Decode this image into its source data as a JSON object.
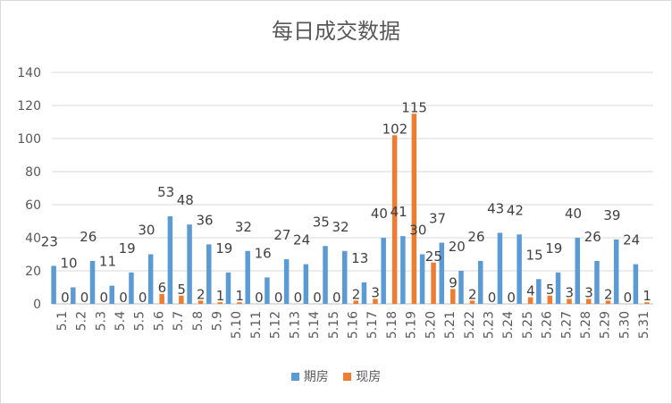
{
  "chart_data": {
    "type": "bar",
    "title": "每日成交数据",
    "categories": [
      "5.1",
      "5.2",
      "5.3",
      "5.4",
      "5.5",
      "5.6",
      "5.7",
      "5.8",
      "5.9",
      "5.10",
      "5.11",
      "5.12",
      "5.13",
      "5.14",
      "5.15",
      "5.16",
      "5.17",
      "5.18",
      "5.19",
      "5.20",
      "5.21",
      "5.22",
      "5.23",
      "5.24",
      "5.25",
      "5.26",
      "5.27",
      "5.28",
      "5.29",
      "5.30",
      "5.31"
    ],
    "series": [
      {
        "name": "期房",
        "color": "#5b9bd5",
        "values": [
          23,
          10,
          26,
          11,
          19,
          30,
          53,
          48,
          36,
          19,
          32,
          16,
          27,
          24,
          35,
          32,
          13,
          40,
          41,
          30,
          37,
          20,
          26,
          43,
          42,
          15,
          19,
          40,
          26,
          39,
          24
        ]
      },
      {
        "name": "现房",
        "color": "#ed7d31",
        "values": [
          0,
          0,
          0,
          0,
          0,
          6,
          5,
          2,
          1,
          1,
          0,
          0,
          0,
          0,
          0,
          2,
          3,
          102,
          115,
          25,
          9,
          2,
          0,
          0,
          4,
          5,
          3,
          3,
          2,
          0,
          1
        ]
      }
    ],
    "ylim": [
      0,
      140
    ],
    "yticks": [
      0,
      20,
      40,
      60,
      80,
      100,
      120,
      140
    ],
    "grid": true,
    "legend_position": "bottom"
  }
}
